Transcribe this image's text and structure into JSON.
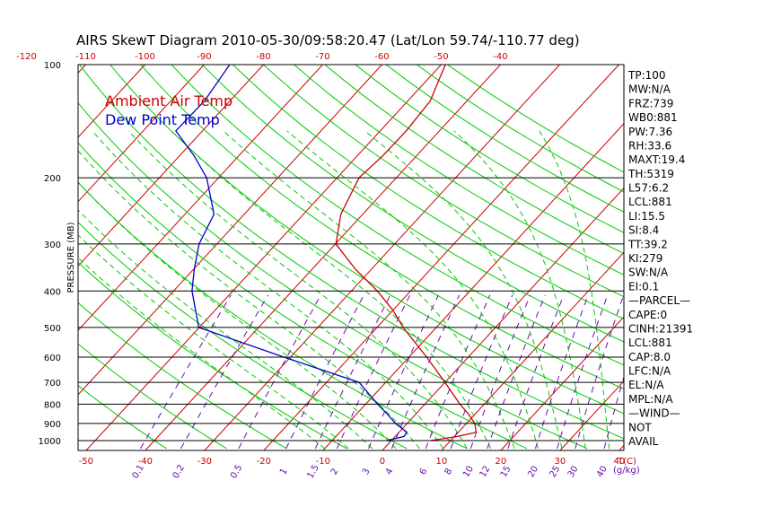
{
  "chart_data": {
    "type": "line",
    "subtype": "skew-t log-p diagram",
    "title": "AIRS SkewT Diagram 2010-05-30/09:58:20.47 (Lat/Lon 59.74/-110.77 deg)",
    "ylabel": "PRESSURE (MB)",
    "xlabel_bottom": "T(C)",
    "mixing_ratio_unit": "(g/kg)",
    "y_scale": "log",
    "ylim": [
      1000,
      100
    ],
    "y_ticks": [
      100,
      200,
      300,
      400,
      500,
      600,
      700,
      800,
      900,
      1000
    ],
    "x_ticks_bottom": [
      -50,
      -40,
      -30,
      -20,
      -10,
      0,
      10,
      20,
      30,
      40
    ],
    "x_ticks_top": [
      -120,
      -110,
      -100,
      -90,
      -80,
      -70,
      -60,
      -50,
      -40
    ],
    "mixing_ratio_labels": [
      "0.1",
      "0.2",
      "0.5",
      "1",
      "1.5",
      "2",
      "3",
      "4",
      "6",
      "8",
      "10",
      "12",
      "15",
      "20",
      "25",
      "30",
      "40"
    ],
    "legend": [
      "Ambient Air Temp",
      "Dew Point Temp"
    ],
    "legend_placement": "top-left",
    "grid": true,
    "series": [
      {
        "name": "Ambient Air Temp",
        "color": "#cc0000",
        "points": [
          {
            "p": 1000,
            "t": 6.6
          },
          {
            "p": 975,
            "t": 10.5
          },
          {
            "p": 950,
            "t": 13.0
          },
          {
            "p": 900,
            "t": 11.4
          },
          {
            "p": 850,
            "t": 8.9
          },
          {
            "p": 800,
            "t": 5.9
          },
          {
            "p": 700,
            "t": 0.0
          },
          {
            "p": 600,
            "t": -7.0
          },
          {
            "p": 500,
            "t": -15.6
          },
          {
            "p": 450,
            "t": -20.0
          },
          {
            "p": 400,
            "t": -25.6
          },
          {
            "p": 350,
            "t": -32.7
          },
          {
            "p": 300,
            "t": -39.9
          },
          {
            "p": 250,
            "t": -43.7
          },
          {
            "p": 200,
            "t": -46.3
          },
          {
            "p": 175,
            "t": -45.7
          },
          {
            "p": 150,
            "t": -45.6
          },
          {
            "p": 125,
            "t": -46.2
          },
          {
            "p": 100,
            "t": -49.3
          }
        ]
      },
      {
        "name": "Dew Point Temp",
        "color": "#0000cc",
        "points": [
          {
            "p": 1000,
            "t": -0.8
          },
          {
            "p": 975,
            "t": 1.5
          },
          {
            "p": 950,
            "t": 1.3
          },
          {
            "p": 900,
            "t": -2.0
          },
          {
            "p": 850,
            "t": -4.8
          },
          {
            "p": 800,
            "t": -8.0
          },
          {
            "p": 700,
            "t": -14.5
          },
          {
            "p": 600,
            "t": -31.1
          },
          {
            "p": 500,
            "t": -50.1
          },
          {
            "p": 400,
            "t": -56.9
          },
          {
            "p": 350,
            "t": -59.9
          },
          {
            "p": 300,
            "t": -63.0
          },
          {
            "p": 250,
            "t": -65.1
          },
          {
            "p": 200,
            "t": -72.0
          },
          {
            "p": 175,
            "t": -77.5
          },
          {
            "p": 150,
            "t": -84.5
          },
          {
            "p": 125,
            "t": -84.3
          },
          {
            "p": 100,
            "t": -85.7
          }
        ]
      }
    ],
    "indices": [
      "TP:100",
      "MW:N/A",
      "FRZ:739",
      "WB0:881",
      "PW:7.36",
      "RH:33.6",
      "MAXT:19.4",
      "TH:5319",
      "L57:6.2",
      "LCL:881",
      "LI:15.5",
      "SI:8.4",
      "TT:39.2",
      "KI:279",
      "SW:N/A",
      "EI:0.1",
      "—PARCEL—",
      "CAPE:0",
      "CINH:21391",
      "LCL:881",
      "CAP:8.0",
      "LFC:N/A",
      "EL:N/A",
      "MPL:N/A",
      "—WIND—",
      "NOT",
      "AVAIL"
    ],
    "colors": {
      "isotherm": "#cc0000",
      "dry_adiabat": "#00cc00",
      "moist_adiabat": "#00cc00",
      "mixing_ratio": "#6a0dad",
      "isobar": "#000000",
      "tick_bottom": "#cc0000",
      "tick_top": "#cc0000",
      "tick_mixing": "#6a0dad"
    }
  }
}
